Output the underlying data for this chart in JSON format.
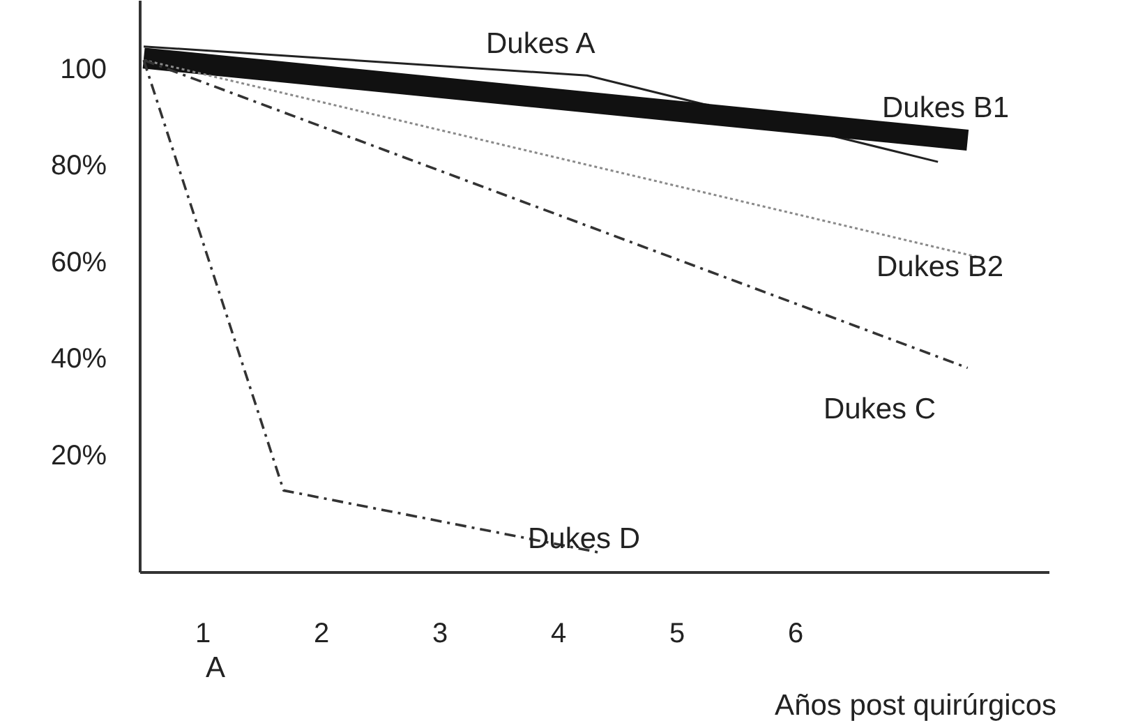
{
  "chart_data": {
    "type": "line",
    "xlabel": "Años post quirúrgicos",
    "xlim": [
      0.47,
      8.14
    ],
    "ylim": [
      -4.2,
      114.3
    ],
    "xticks": [
      1,
      2,
      3,
      4,
      5,
      6
    ],
    "yticks": [
      {
        "value": 20,
        "label": "20%"
      },
      {
        "value": 40,
        "label": "40%"
      },
      {
        "value": 60,
        "label": "60%"
      },
      {
        "value": 80,
        "label": "80%"
      },
      100
    ],
    "grid": false,
    "series": [
      {
        "color": "#222222",
        "line_style": "solid",
        "x": [
          0.5,
          4.24,
          7.2
        ],
        "values": [
          104.8,
          98.8,
          80.9
        ]
      },
      {
        "color": "#111111",
        "line_style": "solid",
        "x": [
          0.5,
          7.45
        ],
        "values": [
          102.4,
          85.4
        ]
      },
      {
        "color": "#8a8a8a",
        "line_style": "dotted",
        "x": [
          0.5,
          7.53
        ],
        "values": [
          102,
          61.2
        ]
      },
      {
        "color": "#333333",
        "line_style": "dashed",
        "x": [
          0.5,
          7.45
        ],
        "values": [
          102,
          38.2
        ]
      },
      {
        "color": "#333333",
        "line_style": "dashed",
        "x": [
          0.5,
          1.68,
          4.33
        ],
        "values": [
          102,
          12.8,
          0
        ]
      }
    ],
    "annotations": [
      "Dukes A",
      "Dukes B1",
      "Dukes B2",
      "Dukes C",
      "Dukes D",
      "A"
    ]
  }
}
